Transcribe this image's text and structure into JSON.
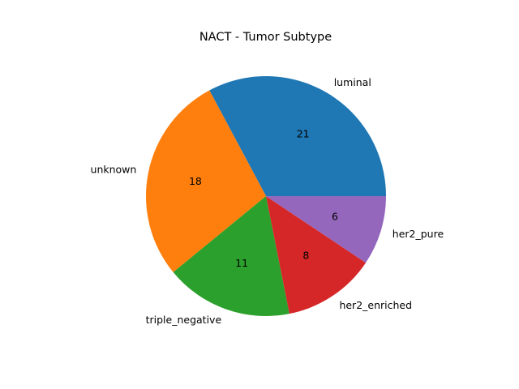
{
  "chart_data": {
    "type": "pie",
    "title": "NACT - Tumor Subtype",
    "start_angle_deg": 0,
    "direction": "counterclockwise",
    "legend": "none",
    "slices": [
      {
        "label": "luminal",
        "value": 21,
        "color": "#1f77b4"
      },
      {
        "label": "unknown",
        "value": 18,
        "color": "#ff7f0e"
      },
      {
        "label": "triple_negative",
        "value": 11,
        "color": "#2ca02c"
      },
      {
        "label": "her2_enriched",
        "value": 8,
        "color": "#d62728"
      },
      {
        "label": "her2_pure",
        "value": 6,
        "color": "#9467bd"
      }
    ]
  }
}
